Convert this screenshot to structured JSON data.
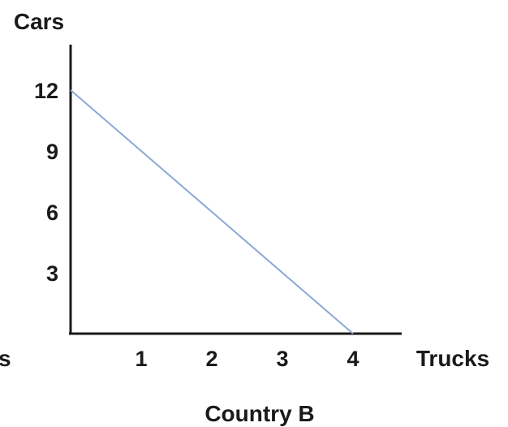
{
  "chart_data": {
    "type": "line",
    "title": "",
    "caption": "Country B",
    "xlabel": "Trucks",
    "ylabel": "Cars",
    "left_edge_fragment": "s",
    "xlim": [
      0,
      4.6
    ],
    "ylim": [
      0,
      14
    ],
    "x_ticks": [
      1,
      2,
      3,
      4
    ],
    "y_ticks": [
      3,
      6,
      9,
      12
    ],
    "grid": false,
    "legend": "none",
    "colors": {
      "line": "#8aa8d6",
      "axis": "#1a1a1a",
      "text": "#1a1a1a"
    },
    "series": [
      {
        "x": [
          0,
          4
        ],
        "y": [
          12,
          0
        ]
      }
    ]
  }
}
